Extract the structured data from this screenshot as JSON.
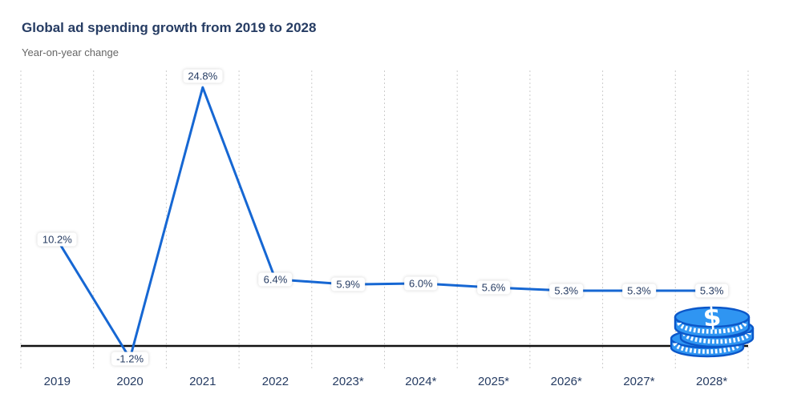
{
  "header": {
    "title": "Global ad spending growth from 2019 to 2028",
    "subtitle": "Year-on-year change"
  },
  "chart_data": {
    "type": "line",
    "title": "Global ad spending growth from 2019 to 2028",
    "subtitle": "Year-on-year change",
    "categories": [
      "2019",
      "2020",
      "2021",
      "2022",
      "2023*",
      "2024*",
      "2025*",
      "2026*",
      "2027*",
      "2028*"
    ],
    "values": [
      10.2,
      -1.2,
      24.8,
      6.4,
      5.9,
      6.0,
      5.6,
      5.3,
      5.3,
      5.3
    ],
    "point_labels": [
      "10.2%",
      "-1.2%",
      "24.8%",
      "6.4%",
      "5.9%",
      "6.0%",
      "5.6%",
      "5.3%",
      "5.3%",
      "5.3%"
    ],
    "unit": "%",
    "baseline_value": 0,
    "ylim": [
      -2.2,
      26.4
    ],
    "grid": "vertical dashed category separators",
    "legend": "none",
    "icon": "dollar-coin-stack-icon"
  },
  "colors": {
    "line": "#1667d3",
    "text_navy": "#263c63",
    "subtitle_gray": "#666666",
    "gridline": "#cccccc",
    "zero_line": "#111111",
    "coin_fill": "#2f95f2",
    "coin_outline": "#0b57c9"
  }
}
